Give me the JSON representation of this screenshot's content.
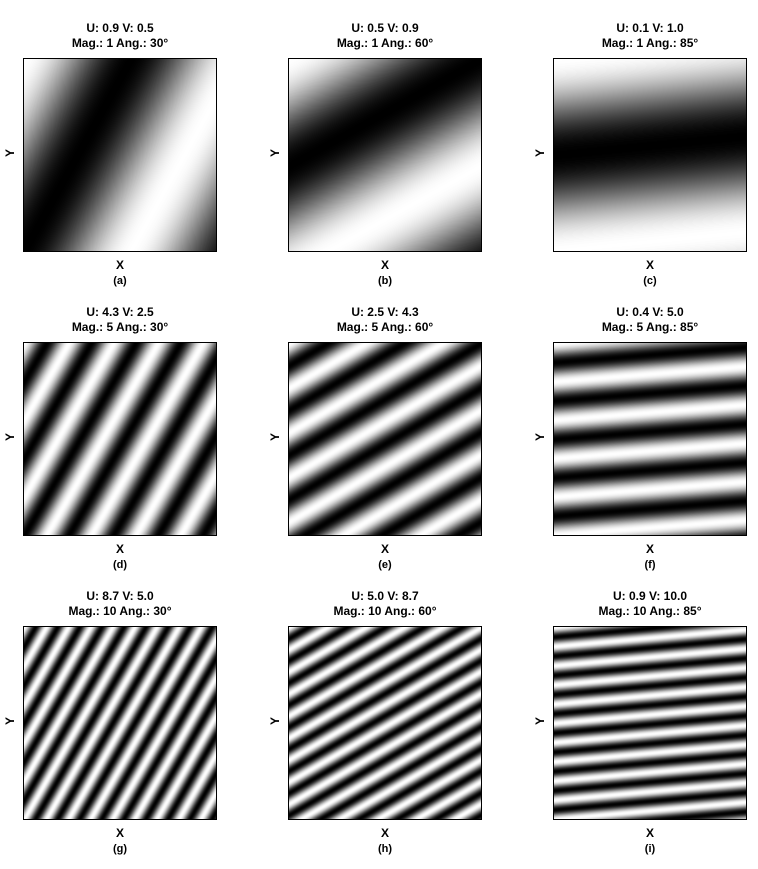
{
  "axes": {
    "xlabel": "X",
    "ylabel": "Y"
  },
  "panels": [
    {
      "caption": "(a)",
      "u": 0.9,
      "v": 0.5,
      "line1": "U: 0.9 V: 0.5",
      "line2": "Mag.: 1 Ang.: 30°",
      "magnitude": 1,
      "angle_deg": 30
    },
    {
      "caption": "(b)",
      "u": 0.5,
      "v": 0.9,
      "line1": "U: 0.5 V: 0.9",
      "line2": "Mag.: 1 Ang.: 60°",
      "magnitude": 1,
      "angle_deg": 60
    },
    {
      "caption": "(c)",
      "u": 0.1,
      "v": 1.0,
      "line1": "U: 0.1 V: 1.0",
      "line2": "Mag.: 1 Ang.: 85°",
      "magnitude": 1,
      "angle_deg": 85
    },
    {
      "caption": "(d)",
      "u": 4.3,
      "v": 2.5,
      "line1": "U: 4.3 V: 2.5",
      "line2": "Mag.: 5 Ang.: 30°",
      "magnitude": 5,
      "angle_deg": 30
    },
    {
      "caption": "(e)",
      "u": 2.5,
      "v": 4.3,
      "line1": "U: 2.5 V: 4.3",
      "line2": "Mag.: 5 Ang.: 60°",
      "magnitude": 5,
      "angle_deg": 60
    },
    {
      "caption": "(f)",
      "u": 0.4,
      "v": 5.0,
      "line1": "U: 0.4 V: 5.0",
      "line2": "Mag.: 5 Ang.: 85°",
      "magnitude": 5,
      "angle_deg": 85
    },
    {
      "caption": "(g)",
      "u": 8.7,
      "v": 5.0,
      "line1": "U: 8.7 V: 5.0",
      "line2": "Mag.: 10 Ang.: 30°",
      "magnitude": 10,
      "angle_deg": 30
    },
    {
      "caption": "(h)",
      "u": 5.0,
      "v": 8.7,
      "line1": "U: 5.0 V: 8.7",
      "line2": "Mag.: 10 Ang.: 60°",
      "magnitude": 10,
      "angle_deg": 60
    },
    {
      "caption": "(i)",
      "u": 0.9,
      "v": 10.0,
      "line1": "U: 0.9 V: 10.0",
      "line2": "Mag.: 10 Ang.: 85°",
      "magnitude": 10,
      "angle_deg": 85
    }
  ]
}
